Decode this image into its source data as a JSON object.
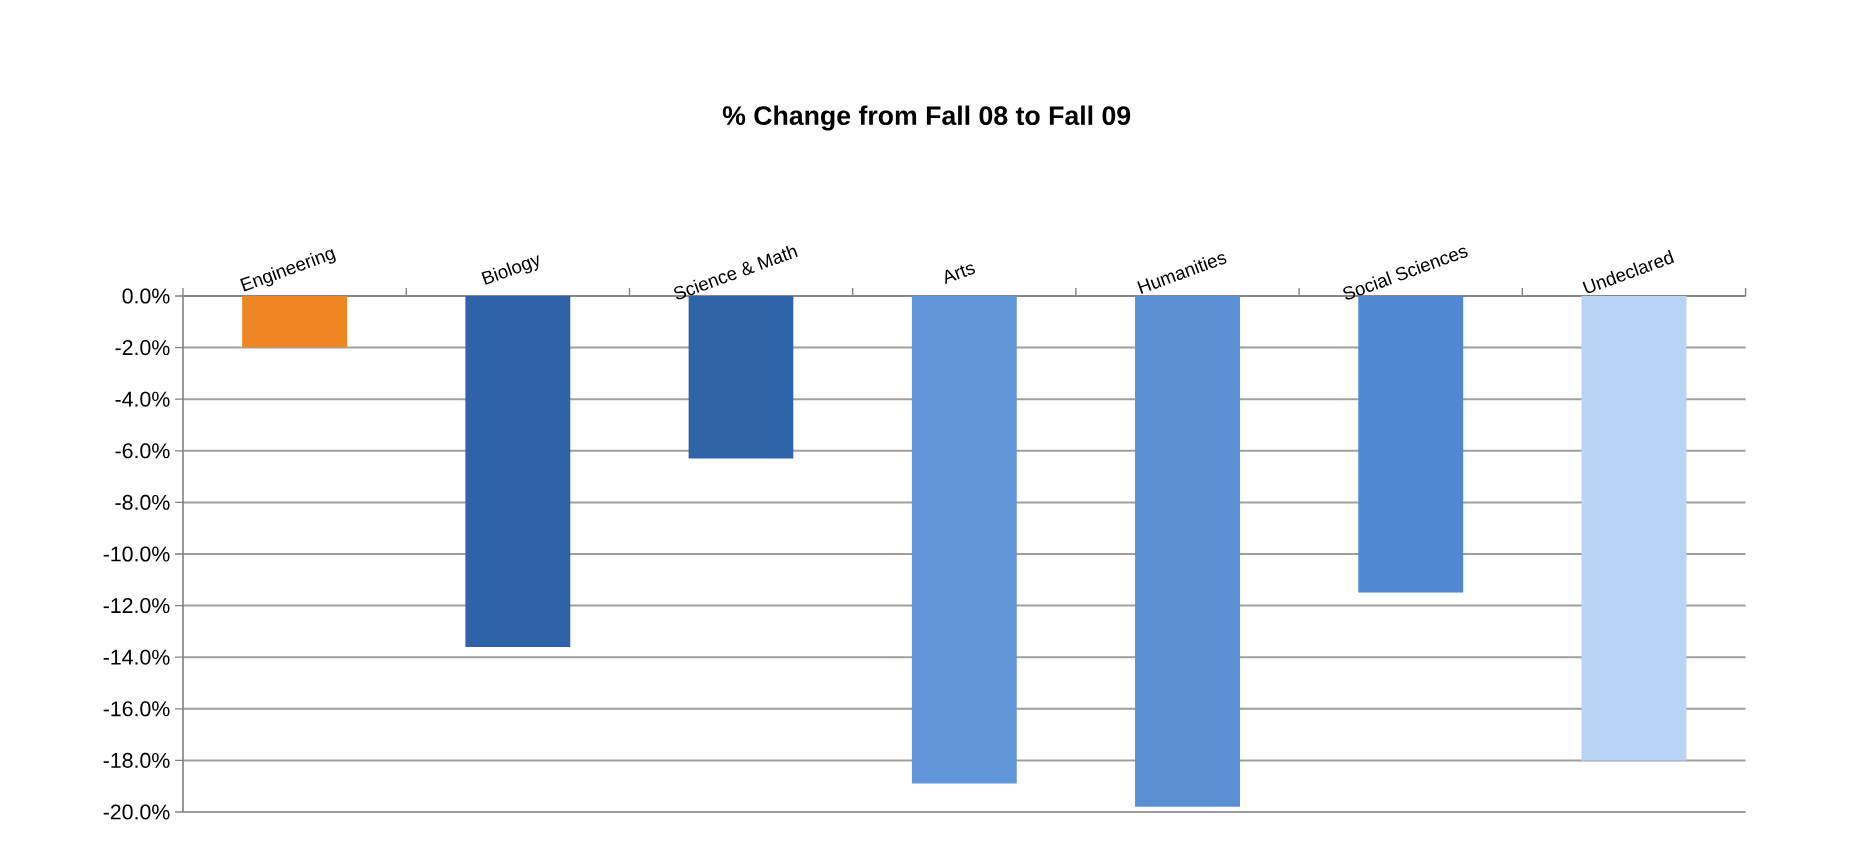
{
  "chart_data": {
    "type": "bar",
    "title": "% Change from Fall 08 to Fall 09",
    "categories": [
      "Engineering",
      "Biology",
      "Science & Math",
      "Arts",
      "Humanities",
      "Social Sciences",
      "Undeclared"
    ],
    "values": [
      -2.0,
      -13.6,
      -6.3,
      -18.9,
      -19.8,
      -11.5,
      -18.0
    ],
    "colors": [
      "#ee8624",
      "#2f62a8",
      "#3064a8",
      "#6196d8",
      "#5a90d4",
      "#5089d2",
      "#b8d3f5"
    ],
    "ylim": [
      -20,
      0
    ],
    "yticks": [
      {
        "value": 0,
        "label": "0.0%"
      },
      {
        "value": -2,
        "label": "-2.0%"
      },
      {
        "value": -4,
        "label": "-4.0%"
      },
      {
        "value": -6,
        "label": "-6.0%"
      },
      {
        "value": -8,
        "label": "-8.0%"
      },
      {
        "value": -10,
        "label": "-10.0%"
      },
      {
        "value": -12,
        "label": "-12.0%"
      },
      {
        "value": -14,
        "label": "-14.0%"
      },
      {
        "value": -16,
        "label": "-16.0%"
      },
      {
        "value": -18,
        "label": "-18.0%"
      },
      {
        "value": -20,
        "label": "-20.0%"
      }
    ],
    "grid": "y"
  }
}
